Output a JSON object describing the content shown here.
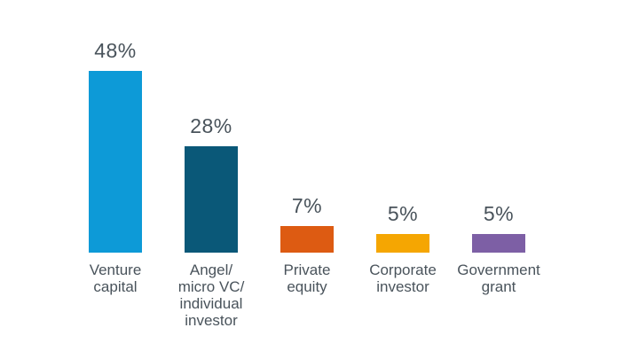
{
  "page": {
    "background_color": "#ffffff",
    "text_color": "#49535B"
  },
  "chart_data": {
    "type": "bar",
    "title": "",
    "xlabel": "",
    "ylabel": "",
    "unit": "%",
    "categories": [
      "Venture capital",
      "Angel/ micro VC/ individual investor",
      "Private equity",
      "Corporate investor",
      "Government grant"
    ],
    "values": [
      48,
      28,
      7,
      5,
      5
    ],
    "data_labels": [
      "48%",
      "28%",
      "7%",
      "5%",
      "5%"
    ],
    "category_label_lines": [
      [
        "Venture",
        "capital"
      ],
      [
        "Angel/",
        "micro VC/",
        "individual",
        "investor"
      ],
      [
        "Private",
        "equity"
      ],
      [
        "Corporate",
        "investor"
      ],
      [
        "Government",
        "grant"
      ]
    ],
    "bar_colors": [
      "#0D9AD7",
      "#0A5878",
      "#DD5B12",
      "#F5A602",
      "#7D5FA5"
    ],
    "label_color": "#49535B",
    "ylim": [
      0,
      50
    ],
    "layout": {
      "gridlines": false,
      "x_axis_line_visible": false,
      "y_axis_visible": false,
      "legend_visible": false,
      "data_labels_position": "above-bars",
      "category_labels_position": "below-bars"
    }
  }
}
